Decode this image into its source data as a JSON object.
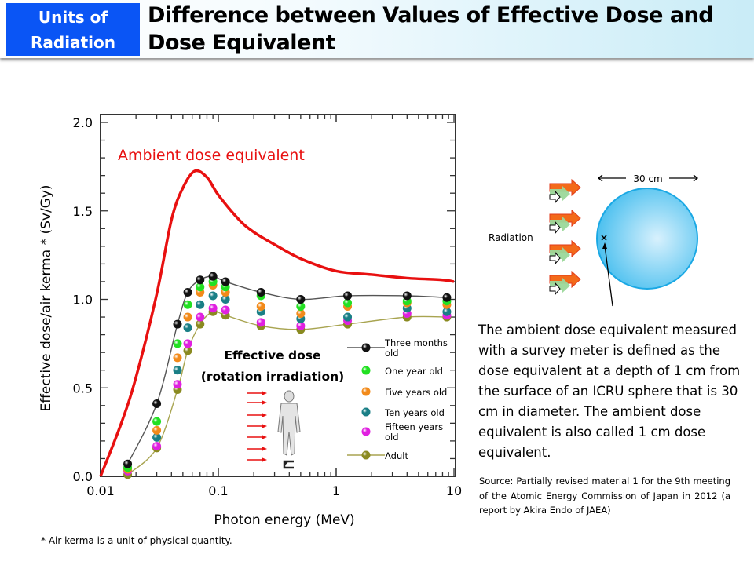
{
  "header": {
    "badge": "Units of Radiation",
    "title": "Difference between Values of Effective Dose and Dose Equivalent"
  },
  "chart_data": {
    "type": "scatter",
    "xlabel": "Photon energy (MeV)",
    "ylabel": "Effective dose/air kerma * (Sv/Gy)",
    "xscale": "log",
    "xlim": [
      0.01,
      10
    ],
    "ylim": [
      0,
      2.0
    ],
    "xticks": [
      "0.01",
      "0.1",
      "1",
      "10"
    ],
    "yticks": [
      "0.0",
      "0.5",
      "1.0",
      "1.5",
      "2.0"
    ],
    "legend_position": "right-middle",
    "annotations": {
      "ambient_label": "Ambient dose equivalent",
      "effective_label_1": "Effective dose",
      "effective_label_2": "(rotation irradiation)"
    },
    "ambient_curve": {
      "name": "Ambient dose equivalent",
      "color": "#e81010",
      "x": [
        0.01,
        0.015,
        0.02,
        0.03,
        0.04,
        0.05,
        0.063,
        0.08,
        0.1,
        0.15,
        0.2,
        0.3,
        0.5,
        1,
        2,
        4,
        8,
        10
      ],
      "y": [
        0,
        0.3,
        0.56,
        1.03,
        1.45,
        1.63,
        1.725,
        1.69,
        1.59,
        1.45,
        1.38,
        1.31,
        1.23,
        1.16,
        1.14,
        1.12,
        1.11,
        1.1
      ]
    },
    "x": [
      0.017,
      0.03,
      0.045,
      0.055,
      0.07,
      0.09,
      0.115,
      0.23,
      0.5,
      1.25,
      4,
      8.7
    ],
    "series": [
      {
        "name": "Three months old",
        "color": "#111111",
        "line": "#555555",
        "values": [
          0.07,
          0.41,
          0.86,
          1.04,
          1.11,
          1.13,
          1.1,
          1.04,
          1.0,
          1.02,
          1.02,
          1.01
        ]
      },
      {
        "name": "One year old",
        "color": "#22e022",
        "values": [
          0.05,
          0.31,
          0.75,
          0.97,
          1.07,
          1.1,
          1.07,
          1.02,
          0.96,
          0.98,
          0.99,
          0.99
        ]
      },
      {
        "name": "Five years old",
        "color": "#f28a1a",
        "values": [
          0.04,
          0.26,
          0.67,
          0.9,
          1.04,
          1.08,
          1.04,
          0.96,
          0.92,
          0.96,
          0.98,
          0.97
        ]
      },
      {
        "name": "Ten years old",
        "color": "#1a7f86",
        "values": [
          0.04,
          0.22,
          0.6,
          0.84,
          0.97,
          1.02,
          1.0,
          0.93,
          0.89,
          0.9,
          0.95,
          0.93
        ]
      },
      {
        "name": "Fifteen years old",
        "color": "#e020e0",
        "values": [
          0.03,
          0.17,
          0.52,
          0.75,
          0.9,
          0.95,
          0.94,
          0.87,
          0.85,
          0.88,
          0.92,
          0.91
        ]
      },
      {
        "name": "Adult",
        "color": "#8a8a20",
        "line": "#a8a450",
        "values": [
          0.01,
          0.16,
          0.49,
          0.71,
          0.86,
          0.93,
          0.91,
          0.85,
          0.83,
          0.86,
          0.9,
          0.9
        ]
      }
    ],
    "legend_lines": [
      [
        "Three months",
        "old"
      ],
      [
        "One year old"
      ],
      [
        "Five years old"
      ],
      [
        "Ten years old"
      ],
      [
        "Fifteen years",
        "old"
      ],
      [
        "Adult"
      ]
    ]
  },
  "diagram": {
    "width_label": "30 cm",
    "radiation_label": "Radiation"
  },
  "description": "The ambient dose equivalent measured with a survey meter is defined as the dose equivalent at a depth of 1 cm from the surface of an ICRU sphere that is 30 cm in diameter. The ambient dose equivalent is also called 1 cm dose equivalent.",
  "source": "Source: Partially revised material 1 for the 9th meeting of the Atomic Energy Commission of Japan in 2012 (a report by Akira Endo of JAEA)",
  "footnote": "* Air kerma is a unit of physical quantity."
}
